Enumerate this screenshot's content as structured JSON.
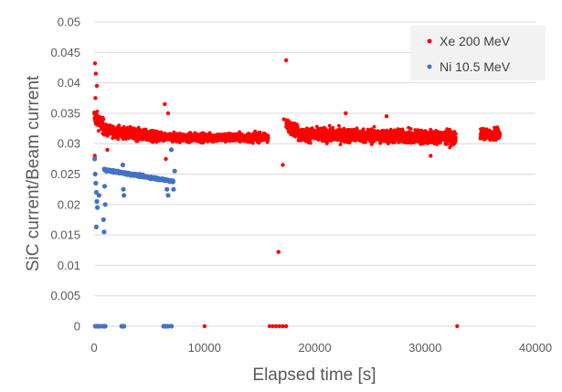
{
  "chart_data": {
    "type": "scatter",
    "xlabel": "Elapsed time [s]",
    "ylabel": "SiC current/Beam current",
    "xlim": [
      0,
      40000
    ],
    "ylim": [
      0,
      0.05
    ],
    "x_ticks": [
      "0",
      "10000",
      "20000",
      "30000",
      "40000"
    ],
    "y_ticks": [
      "0",
      "0.005",
      "0.01",
      "0.015",
      "0.02",
      "0.025",
      "0.03",
      "0.035",
      "0.04",
      "0.045",
      "0.05"
    ],
    "grid": "horizontal",
    "legend_position": "top-right",
    "series": [
      {
        "name": "Xe 200 MeV",
        "color": "#ff0000",
        "segments": [
          {
            "x_start": 0,
            "x_end": 1000,
            "y_start": 0.0345,
            "y_end": 0.0325,
            "spread": 0.0012
          },
          {
            "x_start": 1000,
            "x_end": 6000,
            "y_start": 0.0322,
            "y_end": 0.031,
            "spread": 0.0009
          },
          {
            "x_start": 6000,
            "x_end": 15800,
            "y_start": 0.031,
            "y_end": 0.031,
            "spread": 0.0007
          },
          {
            "x_start": 17400,
            "x_end": 18500,
            "y_start": 0.033,
            "y_end": 0.032,
            "spread": 0.001
          },
          {
            "x_start": 18500,
            "x_end": 32800,
            "y_start": 0.0315,
            "y_end": 0.031,
            "spread": 0.0011
          },
          {
            "x_start": 35000,
            "x_end": 36800,
            "y_start": 0.0315,
            "y_end": 0.0315,
            "spread": 0.0008
          }
        ],
        "points": [
          {
            "x": 80,
            "y": 0.0432
          },
          {
            "x": 150,
            "y": 0.0415
          },
          {
            "x": 250,
            "y": 0.0395
          },
          {
            "x": 120,
            "y": 0.0375
          },
          {
            "x": 60,
            "y": 0.028
          },
          {
            "x": 1200,
            "y": 0.029
          },
          {
            "x": 6400,
            "y": 0.0365
          },
          {
            "x": 6500,
            "y": 0.0275
          },
          {
            "x": 6700,
            "y": 0.035
          },
          {
            "x": 16700,
            "y": 0.0122
          },
          {
            "x": 17400,
            "y": 0.0437
          },
          {
            "x": 17200,
            "y": 0.034
          },
          {
            "x": 17100,
            "y": 0.0265
          },
          {
            "x": 22800,
            "y": 0.035
          },
          {
            "x": 26500,
            "y": 0.0345
          },
          {
            "x": 30500,
            "y": 0.028
          },
          {
            "x": 10000,
            "y": 0.0
          },
          {
            "x": 15900,
            "y": 0.0
          },
          {
            "x": 16200,
            "y": 0.0
          },
          {
            "x": 16500,
            "y": 0.0
          },
          {
            "x": 16800,
            "y": 0.0
          },
          {
            "x": 17100,
            "y": 0.0
          },
          {
            "x": 17400,
            "y": 0.0
          },
          {
            "x": 32900,
            "y": 0.0
          }
        ]
      },
      {
        "name": "Ni 10.5 MeV",
        "color": "#4472c4",
        "segments": [
          {
            "x_start": 900,
            "x_end": 7200,
            "y_start": 0.0257,
            "y_end": 0.0238,
            "spread": 0.0002
          }
        ],
        "points": [
          {
            "x": 60,
            "y": 0.0275
          },
          {
            "x": 100,
            "y": 0.025
          },
          {
            "x": 150,
            "y": 0.0235
          },
          {
            "x": 200,
            "y": 0.022
          },
          {
            "x": 250,
            "y": 0.0205
          },
          {
            "x": 300,
            "y": 0.0195
          },
          {
            "x": 200,
            "y": 0.0163
          },
          {
            "x": 450,
            "y": 0.0215
          },
          {
            "x": 900,
            "y": 0.0155
          },
          {
            "x": 850,
            "y": 0.0175
          },
          {
            "x": 1000,
            "y": 0.02
          },
          {
            "x": 950,
            "y": 0.023
          },
          {
            "x": 2600,
            "y": 0.0265
          },
          {
            "x": 2650,
            "y": 0.0225
          },
          {
            "x": 2700,
            "y": 0.0215
          },
          {
            "x": 6600,
            "y": 0.0225
          },
          {
            "x": 6700,
            "y": 0.0215
          },
          {
            "x": 7000,
            "y": 0.029
          },
          {
            "x": 7200,
            "y": 0.0225
          },
          {
            "x": 7300,
            "y": 0.0255
          },
          {
            "x": 100,
            "y": 0.0
          },
          {
            "x": 300,
            "y": 0.0
          },
          {
            "x": 500,
            "y": 0.0
          },
          {
            "x": 800,
            "y": 0.0
          },
          {
            "x": 1000,
            "y": 0.0
          },
          {
            "x": 2500,
            "y": 0.0
          },
          {
            "x": 2700,
            "y": 0.0
          },
          {
            "x": 6300,
            "y": 0.0
          },
          {
            "x": 6500,
            "y": 0.0
          },
          {
            "x": 6700,
            "y": 0.0
          },
          {
            "x": 7000,
            "y": 0.0
          }
        ]
      }
    ]
  }
}
